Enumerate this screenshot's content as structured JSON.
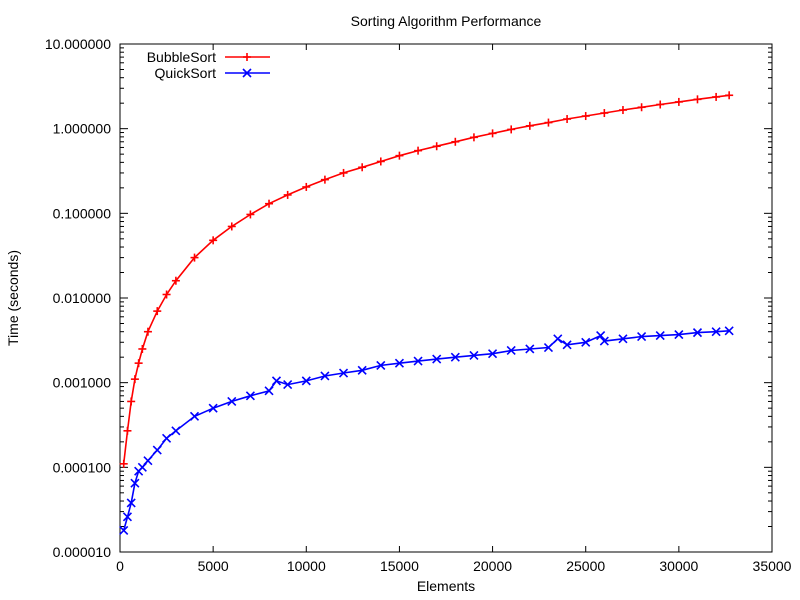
{
  "chart_data": {
    "type": "line",
    "title": "Sorting Algorithm Performance",
    "xlabel": "Elements",
    "ylabel": "Time (seconds)",
    "xlim": [
      0,
      35000
    ],
    "ylim": [
      1e-05,
      10
    ],
    "yscale": "log",
    "grid": false,
    "legend_position": "top-left",
    "x_ticks": [
      0,
      5000,
      10000,
      15000,
      20000,
      25000,
      30000,
      35000
    ],
    "x_tick_labels": [
      "0",
      "5000",
      "10000",
      "15000",
      "20000",
      "25000",
      "30000",
      "35000"
    ],
    "y_ticks": [
      1e-05,
      0.0001,
      0.001,
      0.01,
      0.1,
      1,
      10
    ],
    "y_tick_labels": [
      "0.000010",
      "0.000100",
      "0.001000",
      "0.010000",
      "0.100000",
      "1.000000",
      "10.000000"
    ],
    "series": [
      {
        "name": "BubbleSort",
        "color": "#ff0000",
        "marker": "plus",
        "x": [
          200,
          400,
          600,
          800,
          1000,
          1200,
          1500,
          2000,
          2500,
          3000,
          4000,
          5000,
          6000,
          7000,
          8000,
          9000,
          10000,
          11000,
          12000,
          13000,
          14000,
          15000,
          16000,
          17000,
          18000,
          19000,
          20000,
          21000,
          22000,
          23000,
          24000,
          25000,
          26000,
          27000,
          28000,
          29000,
          30000,
          31000,
          32000,
          32700
        ],
        "y": [
          0.00011,
          0.00027,
          0.0006,
          0.0011,
          0.0017,
          0.0025,
          0.004,
          0.007,
          0.011,
          0.016,
          0.03,
          0.048,
          0.07,
          0.097,
          0.13,
          0.165,
          0.205,
          0.25,
          0.3,
          0.35,
          0.41,
          0.48,
          0.55,
          0.62,
          0.7,
          0.79,
          0.88,
          0.98,
          1.08,
          1.18,
          1.3,
          1.41,
          1.53,
          1.66,
          1.79,
          1.93,
          2.07,
          2.22,
          2.37,
          2.48
        ]
      },
      {
        "name": "QuickSort",
        "color": "#0000ff",
        "marker": "x",
        "x": [
          200,
          400,
          600,
          800,
          1000,
          1200,
          1500,
          2000,
          2500,
          3000,
          4000,
          5000,
          6000,
          7000,
          8000,
          8400,
          9000,
          10000,
          11000,
          12000,
          13000,
          14000,
          15000,
          16000,
          17000,
          18000,
          19000,
          20000,
          21000,
          22000,
          23000,
          23500,
          24000,
          25000,
          25800,
          26000,
          27000,
          28000,
          29000,
          30000,
          31000,
          32000,
          32700
        ],
        "y": [
          1.8e-05,
          2.6e-05,
          3.8e-05,
          6.5e-05,
          9e-05,
          0.0001,
          0.00012,
          0.00016,
          0.00022,
          0.00027,
          0.0004,
          0.0005,
          0.0006,
          0.0007,
          0.0008,
          0.00105,
          0.00095,
          0.00105,
          0.0012,
          0.0013,
          0.0014,
          0.0016,
          0.0017,
          0.0018,
          0.0019,
          0.002,
          0.0021,
          0.0022,
          0.0024,
          0.0025,
          0.0026,
          0.0033,
          0.0028,
          0.003,
          0.0036,
          0.0031,
          0.0033,
          0.0035,
          0.0036,
          0.0037,
          0.0039,
          0.004,
          0.0041
        ]
      }
    ]
  }
}
